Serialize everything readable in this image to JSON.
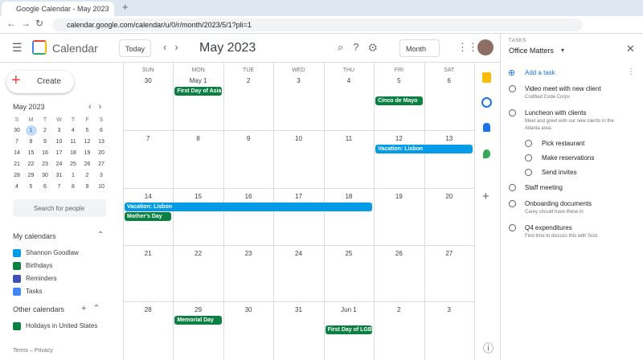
{
  "browser": {
    "tab_title": "Google Calendar - May 2023",
    "url": "calendar.google.com/calendar/u/0/r/month/2023/5/1?pli=1"
  },
  "header": {
    "app_name": "Calendar",
    "today": "Today",
    "period": "May 2023",
    "view": "Month"
  },
  "sidebar": {
    "create": "Create",
    "mini_calendar": {
      "title": "May 2023",
      "weekdays": [
        "S",
        "M",
        "T",
        "W",
        "T",
        "F",
        "S"
      ],
      "weeks": [
        [
          30,
          1,
          2,
          3,
          4,
          5,
          6
        ],
        [
          7,
          8,
          9,
          10,
          11,
          12,
          13
        ],
        [
          14,
          15,
          16,
          17,
          18,
          19,
          20
        ],
        [
          21,
          22,
          23,
          24,
          25,
          26,
          27
        ],
        [
          28,
          29,
          30,
          31,
          1,
          2,
          3
        ],
        [
          4,
          5,
          6,
          7,
          8,
          9,
          10
        ]
      ]
    },
    "search": "Search for people",
    "my_calendars": {
      "title": "My calendars",
      "items": [
        {
          "name": "Shannon Goodlaw",
          "color": "#039be5"
        },
        {
          "name": "Birthdays",
          "color": "#0b8043"
        },
        {
          "name": "Reminders",
          "color": "#3f51b5"
        },
        {
          "name": "Tasks",
          "color": "#4285f4"
        }
      ]
    },
    "other_calendars": {
      "title": "Other calendars",
      "items": [
        {
          "name": "Holidays in United States",
          "color": "#0b8043"
        }
      ]
    },
    "footer": "Terms – Privacy"
  },
  "month_grid": {
    "weekdays": [
      "SUN",
      "MON",
      "TUE",
      "WED",
      "THU",
      "FRI",
      "SAT"
    ],
    "weeks": [
      {
        "dates": [
          "30",
          "May 1",
          "2",
          "3",
          "4",
          "5",
          "6"
        ],
        "events": [
          {
            "label": "First Day of Asia",
            "start": "MON",
            "end": "MON",
            "color": "#0b8043"
          },
          {
            "label": "Cinco de Mayo",
            "start": "FRI",
            "end": "FRI",
            "color": "#0b8043"
          }
        ]
      },
      {
        "dates": [
          "7",
          "8",
          "9",
          "10",
          "11",
          "12",
          "13"
        ],
        "events": [
          {
            "label": "Vacation: Lisbon",
            "start": "FRI",
            "end": "SAT",
            "color": "#039be5"
          }
        ]
      },
      {
        "dates": [
          "14",
          "15",
          "16",
          "17",
          "18",
          "19",
          "20"
        ],
        "events": [
          {
            "label": "Vacation: Lisbon",
            "start": "SUN",
            "end": "THU",
            "color": "#039be5"
          },
          {
            "label": "Mother's Day",
            "start": "SUN",
            "end": "SUN",
            "color": "#0b8043"
          }
        ]
      },
      {
        "dates": [
          "21",
          "22",
          "23",
          "24",
          "25",
          "26",
          "27"
        ],
        "events": []
      },
      {
        "dates": [
          "28",
          "29",
          "30",
          "31",
          "Jun 1",
          "2",
          "3"
        ],
        "events": [
          {
            "label": "Memorial Day",
            "start": "MON",
            "end": "MON",
            "color": "#0b8043"
          },
          {
            "label": "First Day of LGBT",
            "start": "THU",
            "end": "THU",
            "color": "#0b8043"
          }
        ]
      }
    ]
  },
  "tasks": {
    "heading": "TASKS",
    "list": "Office Matters",
    "add": "Add a task",
    "items": [
      {
        "title": "Video meet with new client",
        "note": "Codified Code Corps"
      },
      {
        "title": "Luncheon with clients",
        "note": "Meet and greet with our new clients in the Atlanta area.",
        "subtasks": [
          "Pick restaurant",
          "Make reservations",
          "Send invites"
        ]
      },
      {
        "title": "Staff meeting"
      },
      {
        "title": "Onboarding documents",
        "note": "Carey should have these in"
      },
      {
        "title": "Q4 expenditures",
        "note": "Find time to discuss this with Scot."
      }
    ]
  }
}
